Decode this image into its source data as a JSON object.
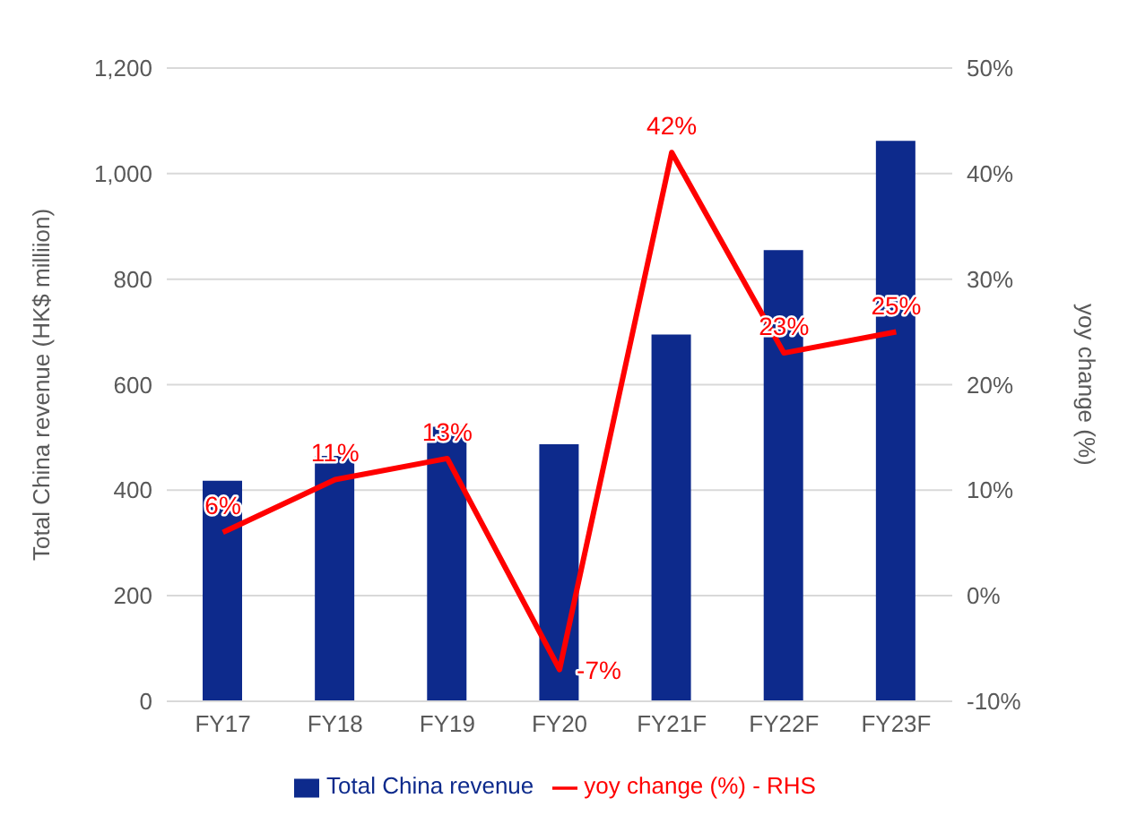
{
  "chart_data": {
    "type": "bar",
    "categories": [
      "FY17",
      "FY18",
      "FY19",
      "FY20",
      "FY21F",
      "FY22F",
      "FY23F"
    ],
    "series": [
      {
        "name": "Total China revenue",
        "color": "#0d2a8c",
        "values": [
          418,
          465,
          520,
          487,
          695,
          855,
          1062
        ]
      },
      {
        "name": "yoy change (%) - RHS",
        "type": "line",
        "axis": "y2",
        "color": "#ff0000",
        "marker": "none",
        "values": [
          6,
          11,
          13,
          -7,
          42,
          23,
          25
        ],
        "value_labels": [
          "6%",
          "11%",
          "13%",
          "-7%",
          "42%",
          "23%",
          "25%"
        ]
      }
    ],
    "ylabel": "Total China revenue (HK$ milliion)",
    "y2label": "yoy change (%)",
    "ylim": [
      0,
      1200
    ],
    "yticks": [
      0,
      {
        "value": 200,
        "label": "200"
      },
      {
        "value": 400,
        "label": "400"
      },
      {
        "value": 600,
        "label": "600"
      },
      {
        "value": 800,
        "label": "800"
      },
      {
        "value": 1000,
        "label": "1,000"
      },
      {
        "value": 1200,
        "label": "1,200"
      }
    ],
    "y2lim": [
      -10,
      50
    ],
    "y2ticks": [
      {
        "value": -10,
        "label": "-10%"
      },
      {
        "value": 0,
        "label": "0%"
      },
      {
        "value": 10,
        "label": "10%"
      },
      {
        "value": 20,
        "label": "20%"
      },
      {
        "value": 30,
        "label": "30%"
      },
      {
        "value": 40,
        "label": "40%"
      },
      {
        "value": 50,
        "label": "50%"
      }
    ],
    "grid": "y",
    "legend": "bottom"
  }
}
